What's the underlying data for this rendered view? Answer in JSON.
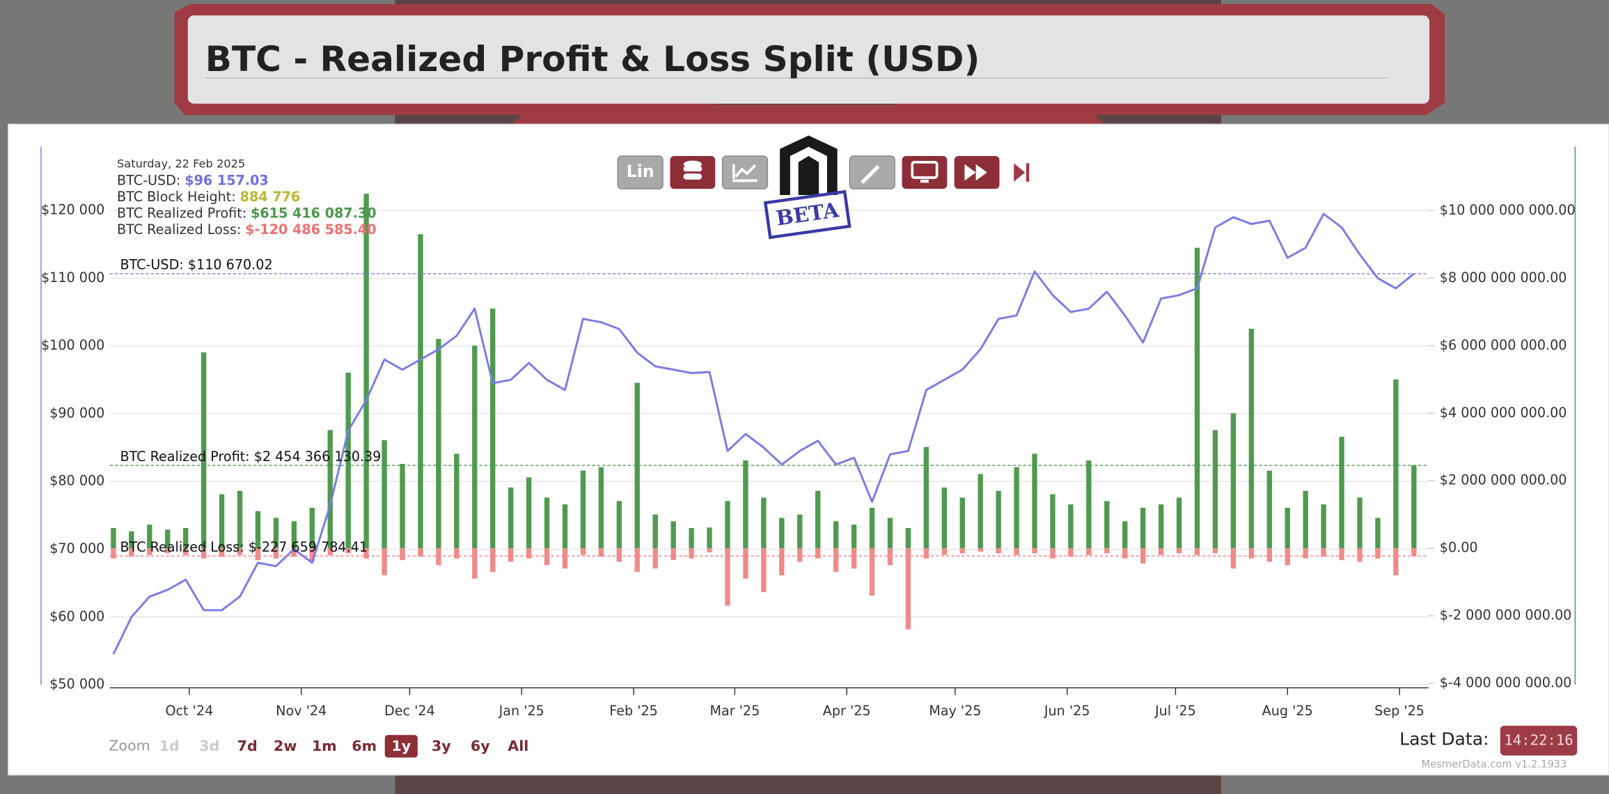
{
  "header": {
    "title": "BTC - Realized Profit & Loss Split (USD)"
  },
  "toolbar": {
    "scale_button": "Lin",
    "logo_stamp": "BETA"
  },
  "tooltip": {
    "date": "Saturday, 22 Feb 2025",
    "rows": [
      {
        "label": "BTC-USD:",
        "value": "$96 157.03",
        "color": "#7070e0"
      },
      {
        "label": "BTC Block Height:",
        "value": "884 776",
        "color": "#b8b832"
      },
      {
        "label": "BTC Realized Profit:",
        "value": "$615 416 087.30",
        "color": "#4a9a4a"
      },
      {
        "label": "BTC Realized Loss:",
        "value": "$-120 486 585.40",
        "color": "#f07070"
      }
    ]
  },
  "chart_data": {
    "type": "combo",
    "xlim": [
      "2024-09-09",
      "2025-09-09"
    ],
    "xticks": [
      {
        "value": "2024-10-01",
        "label": "Oct '24"
      },
      {
        "value": "2024-11-01",
        "label": "Nov '24"
      },
      {
        "value": "2024-12-01",
        "label": "Dec '24"
      },
      {
        "value": "2025-01-01",
        "label": "Jan '25"
      },
      {
        "value": "2025-02-01",
        "label": "Feb '25"
      },
      {
        "value": "2025-03-01",
        "label": "Mar '25"
      },
      {
        "value": "2025-04-01",
        "label": "Apr '25"
      },
      {
        "value": "2025-05-01",
        "label": "May '25"
      },
      {
        "value": "2025-06-01",
        "label": "Jun '25"
      },
      {
        "value": "2025-07-01",
        "label": "Jul '25"
      },
      {
        "value": "2025-08-01",
        "label": "Aug '25"
      },
      {
        "value": "2025-09-01",
        "label": "Sep '25"
      }
    ],
    "ylim": [
      50000,
      129400
    ],
    "yticks": [
      {
        "value": 50000,
        "label": "$50 000"
      },
      {
        "value": 60000,
        "label": "$60 000"
      },
      {
        "value": 70000,
        "label": "$70 000"
      },
      {
        "value": 80000,
        "label": "$80 000"
      },
      {
        "value": 90000,
        "label": "$90 000"
      },
      {
        "value": 100000,
        "label": "$100 000"
      },
      {
        "value": 110000,
        "label": "$110 000"
      },
      {
        "value": 120000,
        "label": "$120 000"
      }
    ],
    "y2lim": [
      -4040000000,
      11890000000
    ],
    "y2ticks": [
      {
        "value": -4000000000,
        "label": "$-4 000 000 000.00"
      },
      {
        "value": -2000000000,
        "label": "$-2 000 000 000.00"
      },
      {
        "value": 0,
        "label": "$0.00"
      },
      {
        "value": 2000000000,
        "label": "$2 000 000 000.00"
      },
      {
        "value": 4000000000,
        "label": "$4 000 000 000.00"
      },
      {
        "value": 6000000000,
        "label": "$6 000 000 000.00"
      },
      {
        "value": 8000000000,
        "label": "$8 000 000 000.00"
      },
      {
        "value": 10000000000,
        "label": "$10 000 000 000.00"
      }
    ],
    "grid": true,
    "x": [
      "2024-09-10",
      "2024-09-15",
      "2024-09-20",
      "2024-09-25",
      "2024-09-30",
      "2024-10-05",
      "2024-10-10",
      "2024-10-15",
      "2024-10-20",
      "2024-10-25",
      "2024-10-30",
      "2024-11-04",
      "2024-11-09",
      "2024-11-14",
      "2024-11-19",
      "2024-11-24",
      "2024-11-29",
      "2024-12-04",
      "2024-12-09",
      "2024-12-14",
      "2024-12-19",
      "2024-12-24",
      "2024-12-29",
      "2025-01-03",
      "2025-01-08",
      "2025-01-13",
      "2025-01-18",
      "2025-01-23",
      "2025-01-28",
      "2025-02-02",
      "2025-02-07",
      "2025-02-12",
      "2025-02-17",
      "2025-02-22",
      "2025-02-27",
      "2025-03-04",
      "2025-03-09",
      "2025-03-14",
      "2025-03-19",
      "2025-03-24",
      "2025-03-29",
      "2025-04-03",
      "2025-04-08",
      "2025-04-13",
      "2025-04-18",
      "2025-04-23",
      "2025-04-28",
      "2025-05-03",
      "2025-05-08",
      "2025-05-13",
      "2025-05-18",
      "2025-05-23",
      "2025-05-28",
      "2025-06-02",
      "2025-06-07",
      "2025-06-12",
      "2025-06-17",
      "2025-06-22",
      "2025-06-27",
      "2025-07-02",
      "2025-07-07",
      "2025-07-12",
      "2025-07-17",
      "2025-07-22",
      "2025-07-27",
      "2025-08-01",
      "2025-08-06",
      "2025-08-11",
      "2025-08-16",
      "2025-08-21",
      "2025-08-26",
      "2025-08-31",
      "2025-09-05"
    ],
    "series": [
      {
        "type": "line",
        "axis": "y",
        "color": "#7b7be6",
        "values": [
          54500,
          60000,
          63000,
          64000,
          65500,
          61000,
          61000,
          63000,
          68000,
          67500,
          70000,
          68000,
          76500,
          87500,
          92000,
          98000,
          96500,
          98000,
          99500,
          101500,
          105500,
          94500,
          95000,
          97500,
          95000,
          93500,
          104000,
          103500,
          102500,
          99000,
          97000,
          96500,
          96000,
          96157.03,
          84500,
          87000,
          85000,
          82500,
          84500,
          86000,
          82500,
          83500,
          77000,
          84000,
          84500,
          93500,
          95000,
          96500,
          99500,
          104000,
          104500,
          111000,
          107500,
          105000,
          105500,
          108000,
          104500,
          100500,
          107000,
          107500,
          108500,
          117500,
          119000,
          118000,
          118500,
          113000,
          114500,
          119500,
          117500,
          113500,
          110000,
          108500,
          110670.02
        ]
      },
      {
        "type": "bar",
        "axis": "y2",
        "color": "#4f9a4f",
        "values": [
          600000000,
          500000000,
          700000000,
          550000000,
          600000000,
          5800000000,
          1600000000,
          1700000000,
          1100000000,
          900000000,
          800000000,
          1200000000,
          3500000000,
          5200000000,
          10500000000,
          3200000000,
          2500000000,
          9300000000,
          6200000000,
          2800000000,
          6000000000,
          7100000000,
          1800000000,
          2100000000,
          1500000000,
          1300000000,
          2300000000,
          2400000000,
          1400000000,
          4900000000,
          1000000000,
          800000000,
          600000000,
          615416087.3,
          1400000000,
          2600000000,
          1500000000,
          900000000,
          1000000000,
          1700000000,
          800000000,
          700000000,
          1200000000,
          900000000,
          600000000,
          3000000000,
          1800000000,
          1500000000,
          2200000000,
          1700000000,
          2400000000,
          2800000000,
          1600000000,
          1300000000,
          2600000000,
          1400000000,
          800000000,
          1200000000,
          1300000000,
          1500000000,
          8900000000,
          3500000000,
          4000000000,
          6500000000,
          2300000000,
          1200000000,
          1700000000,
          1300000000,
          3300000000,
          1500000000,
          900000000,
          5000000000,
          2454366130.39
        ]
      },
      {
        "type": "bar",
        "axis": "y2",
        "color": "#f08a8a",
        "values": [
          -300000000,
          -250000000,
          -200000000,
          -150000000,
          -200000000,
          -300000000,
          -250000000,
          -200000000,
          -350000000,
          -300000000,
          -250000000,
          -400000000,
          -200000000,
          -150000000,
          -300000000,
          -800000000,
          -350000000,
          -250000000,
          -500000000,
          -300000000,
          -900000000,
          -700000000,
          -400000000,
          -300000000,
          -500000000,
          -600000000,
          -200000000,
          -250000000,
          -400000000,
          -700000000,
          -600000000,
          -350000000,
          -300000000,
          -120486585.4,
          -1700000000,
          -900000000,
          -1300000000,
          -800000000,
          -400000000,
          -300000000,
          -700000000,
          -600000000,
          -1400000000,
          -500000000,
          -2400000000,
          -300000000,
          -200000000,
          -150000000,
          -100000000,
          -150000000,
          -200000000,
          -150000000,
          -300000000,
          -250000000,
          -200000000,
          -150000000,
          -300000000,
          -450000000,
          -200000000,
          -150000000,
          -200000000,
          -150000000,
          -600000000,
          -300000000,
          -400000000,
          -500000000,
          -300000000,
          -250000000,
          -350000000,
          -400000000,
          -300000000,
          -800000000,
          -227659784.41
        ]
      }
    ],
    "last_value_labels": [
      "BTC-USD: $110 670.02",
      "BTC Realized Profit: $2 454 366 130.39",
      "BTC Realized Loss: $-227 659 784.41"
    ]
  },
  "footer": {
    "zoom_label": "Zoom",
    "zoom_options": [
      {
        "label": "1d",
        "state": "disabled"
      },
      {
        "label": "3d",
        "state": "disabled"
      },
      {
        "label": "7d",
        "state": "enabled"
      },
      {
        "label": "2w",
        "state": "enabled"
      },
      {
        "label": "1m",
        "state": "enabled"
      },
      {
        "label": "6m",
        "state": "enabled"
      },
      {
        "label": "1y",
        "state": "active"
      },
      {
        "label": "3y",
        "state": "enabled"
      },
      {
        "label": "6y",
        "state": "enabled"
      },
      {
        "label": "All",
        "state": "enabled"
      }
    ],
    "last_data_label": "Last Data:",
    "last_data_time": "14:22:16",
    "credit": "MesmerData.com v1.2.1933"
  }
}
